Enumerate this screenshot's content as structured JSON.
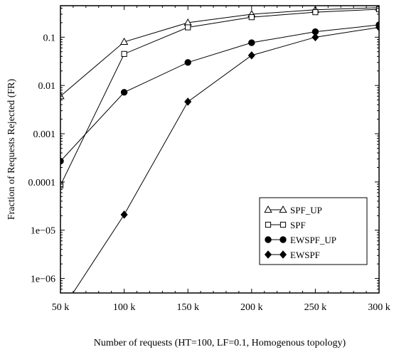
{
  "chart_data": {
    "type": "line",
    "title": "",
    "xlabel": "Number of requests (HT=100, LF=0.1, Homogenous topology)",
    "ylabel": "Fraction of Requests Rejected (FR)",
    "x_scale": "linear",
    "y_scale": "log",
    "xlim": [
      50000,
      300000
    ],
    "ylim": [
      5e-07,
      0.45
    ],
    "x_ticks": [
      50000,
      100000,
      150000,
      200000,
      250000,
      300000
    ],
    "x_tick_labels": [
      "50 k",
      "100 k",
      "150 k",
      "200 k",
      "250 k",
      "300 k"
    ],
    "y_ticks": [
      1e-06,
      1e-05,
      0.0001,
      0.001,
      0.01,
      0.1
    ],
    "y_tick_labels": [
      "1e−06",
      "1e−05",
      "0.0001",
      "0.001",
      "0.01",
      "0.1"
    ],
    "grid": false,
    "legend_position": "lower-right",
    "x": [
      50000,
      100000,
      150000,
      200000,
      250000,
      300000
    ],
    "series": [
      {
        "name": "SPF_UP",
        "marker": "triangle-open",
        "values": [
          0.006,
          0.08,
          0.2,
          0.3,
          0.37,
          0.41
        ]
      },
      {
        "name": "SPF",
        "marker": "square-open",
        "values": [
          8.5e-05,
          0.045,
          0.16,
          0.26,
          0.33,
          0.38
        ]
      },
      {
        "name": "EWSPF_UP",
        "marker": "circle-filled",
        "values": [
          0.00027,
          0.0072,
          0.03,
          0.077,
          0.13,
          0.18
        ]
      },
      {
        "name": "EWSPF",
        "marker": "diamond-filled",
        "values": [
          2e-07,
          2.1e-05,
          0.0046,
          0.042,
          0.1,
          0.16
        ]
      }
    ]
  }
}
